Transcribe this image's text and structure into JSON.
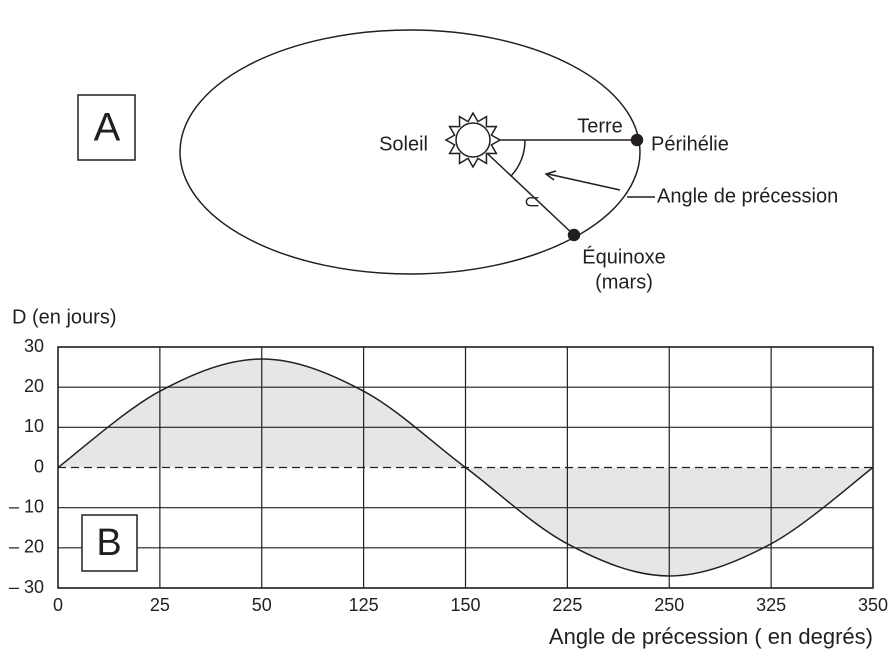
{
  "diagram": {
    "panel_label": "A",
    "sun": "Soleil",
    "earth": "Terre",
    "perihelion": "Périhélie",
    "precession": "Angle de précession",
    "angle_symbol": "⊃",
    "equinox": "Équinoxe",
    "equinox_month": "(mars)"
  },
  "chart_data": {
    "type": "area",
    "annotation": "B",
    "ylabel": "D (en jours)",
    "xlabel": "Angle de précession ( en degrés)",
    "categories": [
      "0",
      "25",
      "50",
      "125",
      "150",
      "225",
      "250",
      "325",
      "350"
    ],
    "values": [
      0,
      19,
      27,
      19,
      0,
      -19,
      -27,
      -19,
      0
    ],
    "color": "#e6e6e6",
    "ylim": [
      -30,
      30
    ],
    "yticks": [
      {
        "value": -30,
        "label": "– 30"
      },
      {
        "value": -20,
        "label": "– 20"
      },
      {
        "value": -10,
        "label": "– 10"
      },
      0,
      10,
      20,
      30
    ],
    "grid": true
  }
}
